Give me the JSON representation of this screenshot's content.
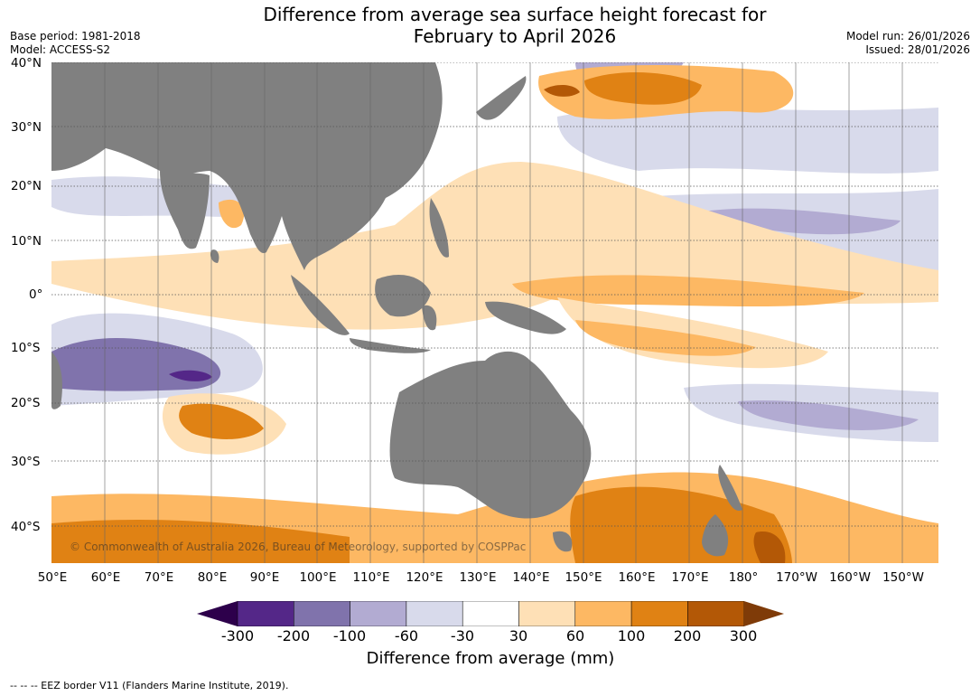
{
  "title": {
    "line1": "Difference from average sea surface height forecast for",
    "line2": "February to April 2026"
  },
  "meta_left": {
    "base_period": "Base period: 1981-2018",
    "model": "Model: ACCESS-S2"
  },
  "meta_right": {
    "model_run": "Model run: 26/01/2026",
    "issued": "Issued: 28/01/2026"
  },
  "map": {
    "copyright": "© Commonwealth of Australia 2026, Bureau of Meteorology, supported by COSPPac",
    "lat_labels": [
      "40°N",
      "30°N",
      "20°N",
      "10°N",
      "0°",
      "10°S",
      "20°S",
      "30°S",
      "40°S"
    ],
    "lon_labels": [
      "50°E",
      "60°E",
      "70°E",
      "80°E",
      "90°E",
      "100°E",
      "110°E",
      "120°E",
      "130°E",
      "140°E",
      "150°E",
      "160°E",
      "170°E",
      "180°",
      "170°W",
      "160°W",
      "150°W"
    ],
    "land_color": "#808080"
  },
  "colorbar": {
    "ticks": [
      "-300",
      "-200",
      "-100",
      "-60",
      "-30",
      "30",
      "60",
      "100",
      "200",
      "300"
    ],
    "colors": [
      "#2d004b",
      "#542788",
      "#8073ac",
      "#b2abd2",
      "#d8daeb",
      "#ffffff",
      "#fee0b6",
      "#fdb863",
      "#e08214",
      "#b35806",
      "#7f3b08"
    ],
    "label": "Difference from average (mm)"
  },
  "footnote": "--  --  -- EEZ border V11 (Flanders Marine Institute, 2019)."
}
